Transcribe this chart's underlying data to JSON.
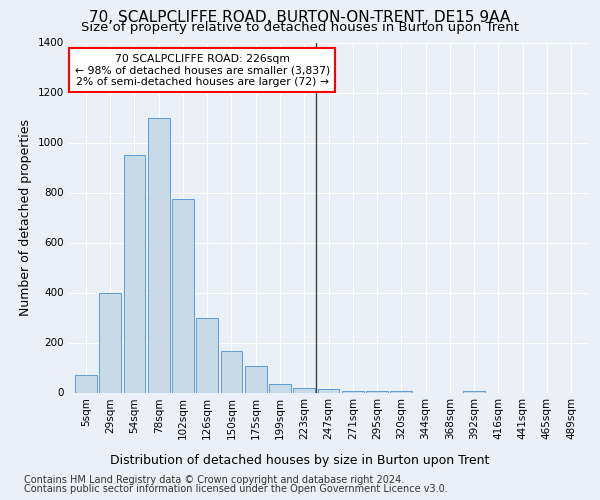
{
  "title": "70, SCALPCLIFFE ROAD, BURTON-ON-TRENT, DE15 9AA",
  "subtitle": "Size of property relative to detached houses in Burton upon Trent",
  "xlabel_bottom": "Distribution of detached houses by size in Burton upon Trent",
  "ylabel": "Number of detached properties",
  "footnote1": "Contains HM Land Registry data © Crown copyright and database right 2024.",
  "footnote2": "Contains public sector information licensed under the Open Government Licence v3.0.",
  "bar_labels": [
    "5sqm",
    "29sqm",
    "54sqm",
    "78sqm",
    "102sqm",
    "126sqm",
    "150sqm",
    "175sqm",
    "199sqm",
    "223sqm",
    "247sqm",
    "271sqm",
    "295sqm",
    "320sqm",
    "344sqm",
    "368sqm",
    "392sqm",
    "416sqm",
    "441sqm",
    "465sqm",
    "489sqm"
  ],
  "bar_values": [
    70,
    400,
    950,
    1100,
    775,
    300,
    165,
    105,
    35,
    20,
    15,
    5,
    5,
    5,
    0,
    0,
    5,
    0,
    0,
    0,
    0
  ],
  "bar_color": "#c8d9e8",
  "bar_edge_color": "#5b9bd5",
  "vline_index": 9.5,
  "vline_color": "#404040",
  "annotation_text": "70 SCALPCLIFFE ROAD: 226sqm\n← 98% of detached houses are smaller (3,837)\n2% of semi-detached houses are larger (72) →",
  "annotation_box_color": "white",
  "annotation_box_edgecolor": "red",
  "ylim": [
    0,
    1400
  ],
  "yticks": [
    0,
    200,
    400,
    600,
    800,
    1000,
    1200,
    1400
  ],
  "bg_color": "#eaf0f7",
  "axes_bg_color": "#eaf0f7",
  "grid_color": "white",
  "title_fontsize": 11,
  "subtitle_fontsize": 9.5,
  "tick_fontsize": 7.5,
  "ylabel_fontsize": 9,
  "xlabel_bottom_fontsize": 9,
  "footnote_fontsize": 7
}
